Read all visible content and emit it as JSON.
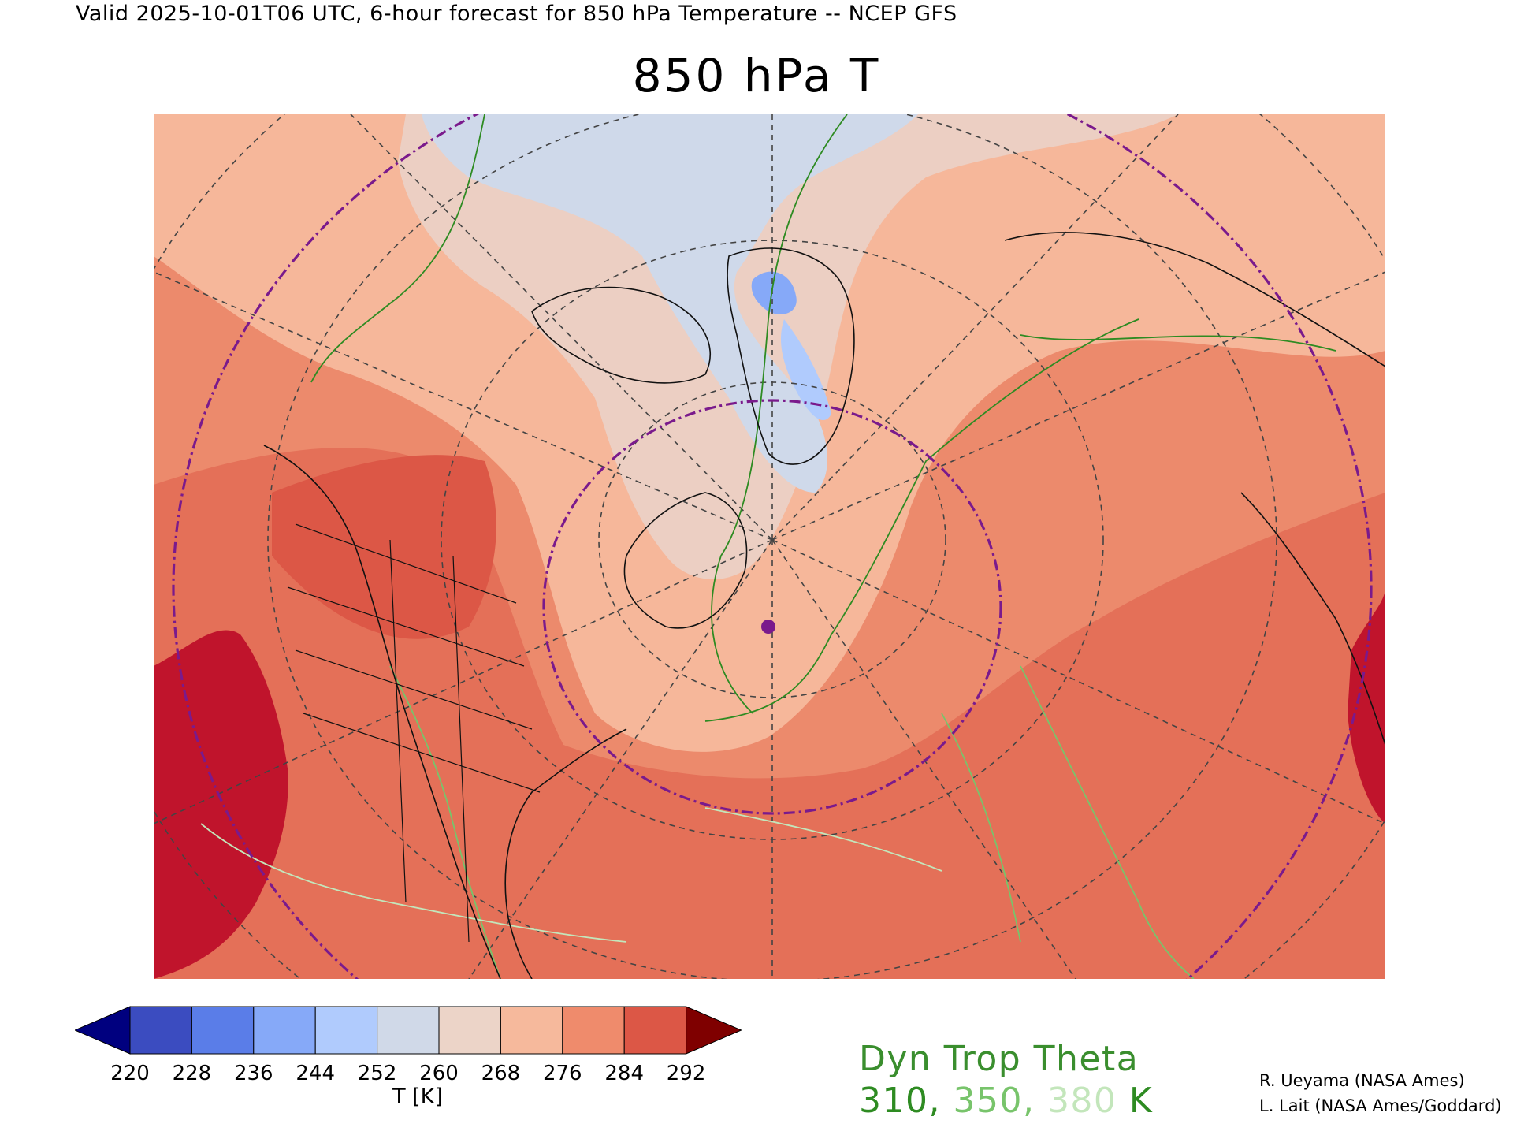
{
  "header": {
    "valid_line": "Valid 2025-10-01T06 UTC, 6-hour forecast for 850 hPa Temperature -- NCEP GFS",
    "title": "850 hPa T"
  },
  "colorbar": {
    "label": "T [K]",
    "ticks": [
      "220",
      "228",
      "236",
      "244",
      "252",
      "260",
      "268",
      "276",
      "284",
      "292"
    ],
    "under_color": "#00007f",
    "over_color": "#7f0000",
    "colors": [
      "#3b4cc0",
      "#5a7de8",
      "#86a9f8",
      "#b0cbfd",
      "#d0d9e8",
      "#ecd4c8",
      "#f6b99c",
      "#ef8b6c",
      "#dc5746"
    ]
  },
  "legend": {
    "title": "Dyn Trop Theta",
    "values": [
      {
        "text": "310",
        "color": "#2e8b22"
      },
      {
        "text": ", ",
        "color": "#2e8b22"
      },
      {
        "text": "350",
        "color": "#78c46b"
      },
      {
        "text": ", ",
        "color": "#78c46b"
      },
      {
        "text": "380",
        "color": "#c3e6bb"
      },
      {
        "text": " K",
        "color": "#2e8b22"
      }
    ]
  },
  "credits": [
    "R. Ueyama (NASA Ames)",
    "L. Lait (NASA Ames/Goddard)"
  ],
  "map": {
    "background_color": "#e47058",
    "dark_red": "#c0142c",
    "land_color": "#111111",
    "graticule_color": "#444444",
    "circle_color": "#7a1a8c",
    "marker_color": "#7a1a8c"
  }
}
